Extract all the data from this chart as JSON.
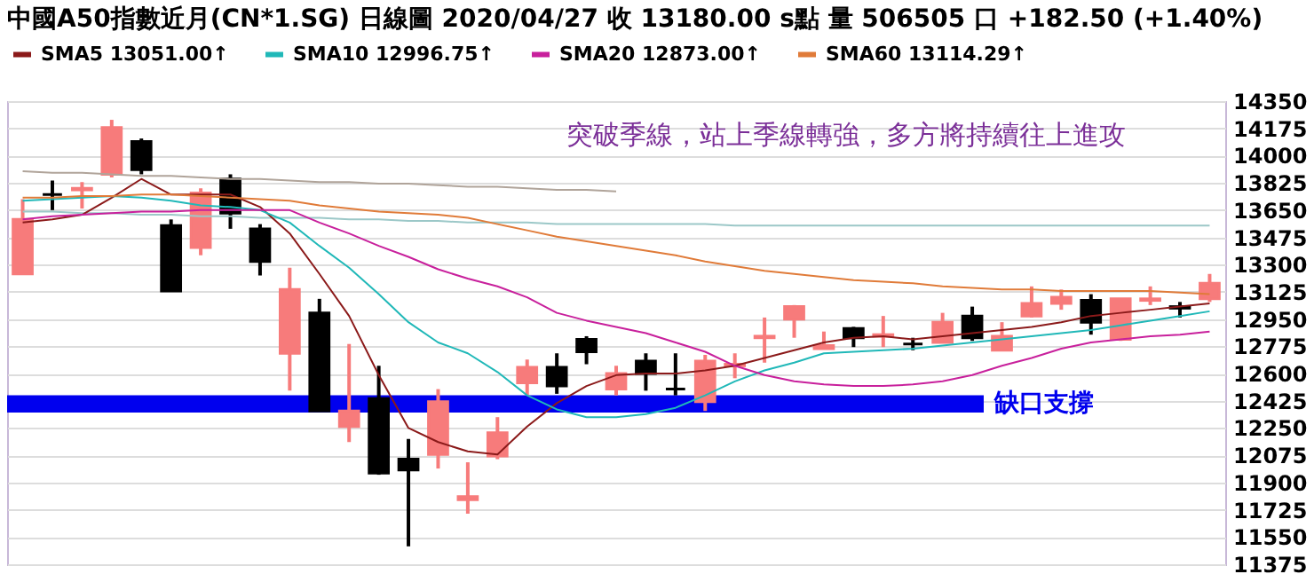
{
  "chart_data": {
    "type": "candlestick",
    "title": "中國A50指數近月(CN*1.SG)   日線圖  2020/04/27  收 13180.00 s點  量 506505 口  +182.50 (+1.40%)",
    "categories": [
      null,
      null,
      null,
      null,
      null,
      null,
      null,
      null,
      null,
      null,
      null,
      null,
      null,
      null,
      null,
      null,
      null,
      null,
      null,
      null,
      null,
      null,
      null,
      null,
      null,
      null,
      null,
      null,
      null,
      null,
      null,
      null,
      null,
      null,
      null,
      null,
      null,
      null,
      null,
      null,
      null
    ],
    "ohlc": [
      [
        13240,
        13720,
        13240,
        13590
      ],
      [
        13750,
        13840,
        13650,
        13750
      ],
      [
        13780,
        13830,
        13660,
        13790
      ],
      [
        13880,
        14230,
        13860,
        14180
      ],
      [
        14090,
        14110,
        13880,
        13910
      ],
      [
        13550,
        13590,
        13130,
        13130
      ],
      [
        13410,
        13790,
        13360,
        13760
      ],
      [
        13850,
        13880,
        13530,
        13630
      ],
      [
        13530,
        13560,
        13230,
        13320
      ],
      [
        12730,
        13280,
        12490,
        13140
      ],
      [
        12990,
        13080,
        12360,
        12360
      ],
      [
        12260,
        12790,
        12160,
        12360
      ],
      [
        12440,
        12650,
        11950,
        11960
      ],
      [
        12050,
        12180,
        11490,
        11980
      ],
      [
        12080,
        12500,
        11990,
        12420
      ],
      [
        11790,
        12030,
        11700,
        11810
      ],
      [
        12070,
        12320,
        12050,
        12220
      ],
      [
        12540,
        12690,
        12460,
        12640
      ],
      [
        12640,
        12730,
        12470,
        12520
      ],
      [
        12820,
        12840,
        12660,
        12740
      ],
      [
        12500,
        12650,
        12460,
        12600
      ],
      [
        12680,
        12730,
        12490,
        12600
      ],
      [
        12500,
        12730,
        12460,
        12500
      ],
      [
        12420,
        12720,
        12360,
        12680
      ],
      [
        12650,
        12730,
        12570,
        12660
      ],
      [
        12830,
        12960,
        12670,
        12840
      ],
      [
        12950,
        13040,
        12830,
        13030
      ],
      [
        12760,
        12870,
        12760,
        12780
      ],
      [
        12890,
        12900,
        12770,
        12830
      ],
      [
        12840,
        12970,
        12770,
        12850
      ],
      [
        12790,
        12830,
        12750,
        12790
      ],
      [
        12800,
        12990,
        12800,
        12930
      ],
      [
        12970,
        13030,
        12810,
        12830
      ],
      [
        12750,
        12930,
        12750,
        12840
      ],
      [
        12970,
        13160,
        12960,
        13050
      ],
      [
        13050,
        13140,
        13010,
        13090
      ],
      [
        13070,
        13110,
        12850,
        12930
      ],
      [
        12820,
        13080,
        12810,
        13080
      ],
      [
        13070,
        13160,
        13040,
        13080
      ],
      [
        13030,
        13060,
        12960,
        13020
      ],
      [
        13080,
        13240,
        13060,
        13180
      ]
    ],
    "colors": [
      "#f77b7b",
      "#000000",
      "#f77b7b",
      "#f77b7b",
      "#000000",
      "#000000",
      "#f77b7b",
      "#000000",
      "#000000",
      "#f77b7b",
      "#000000",
      "#f77b7b",
      "#000000",
      "#000000",
      "#f77b7b",
      "#f77b7b",
      "#f77b7b",
      "#f77b7b",
      "#000000",
      "#000000",
      "#f77b7b",
      "#000000",
      "#000000",
      "#f77b7b",
      "#f77b7b",
      "#f77b7b",
      "#f77b7b",
      "#f77b7b",
      "#000000",
      "#f77b7b",
      "#000000",
      "#f77b7b",
      "#000000",
      "#f77b7b",
      "#f77b7b",
      "#f77b7b",
      "#000000",
      "#f77b7b",
      "#f77b7b",
      "#000000",
      "#f77b7b"
    ],
    "series": [
      {
        "type": "line",
        "name": "SMA5 13051.00↑",
        "color": "#8b1a1a",
        "values": [
          13570,
          13590,
          13620,
          13730,
          13850,
          13750,
          13750,
          13750,
          13670,
          13500,
          13240,
          12970,
          12590,
          12250,
          12160,
          12100,
          12080,
          12260,
          12410,
          12520,
          12590,
          12600,
          12600,
          12620,
          12650,
          12700,
          12750,
          12800,
          12830,
          12840,
          12820,
          12840,
          12860,
          12880,
          12900,
          12930,
          12970,
          12990,
          13010,
          13030,
          13050
        ]
      },
      {
        "type": "line",
        "name": "SMA10 12996.75↑",
        "color": "#20b8b8",
        "values": [
          13710,
          13720,
          13730,
          13740,
          13730,
          13710,
          13680,
          13670,
          13650,
          13570,
          13420,
          13280,
          13110,
          12930,
          12800,
          12730,
          12610,
          12460,
          12370,
          12320,
          12320,
          12340,
          12380,
          12460,
          12550,
          12620,
          12670,
          12730,
          12740,
          12750,
          12760,
          12780,
          12800,
          12820,
          12840,
          12860,
          12880,
          12910,
          12940,
          12970,
          13000
        ]
      },
      {
        "type": "line",
        "name": "SMA20 12873.00↑",
        "color": "#c8209c",
        "values": [
          13590,
          13610,
          13620,
          13630,
          13640,
          13640,
          13650,
          13650,
          13650,
          13650,
          13570,
          13500,
          13420,
          13350,
          13270,
          13210,
          13160,
          13090,
          12990,
          12940,
          12900,
          12860,
          12800,
          12740,
          12650,
          12590,
          12550,
          12530,
          12520,
          12520,
          12530,
          12550,
          12590,
          12650,
          12700,
          12760,
          12800,
          12820,
          12840,
          12850,
          12870
        ]
      },
      {
        "type": "line",
        "name": "SMA60 13114.29↑",
        "color": "#e07b39",
        "values": [
          13730,
          13730,
          13740,
          13740,
          13750,
          13750,
          13740,
          13730,
          13720,
          13710,
          13680,
          13660,
          13640,
          13630,
          13620,
          13600,
          13560,
          13520,
          13480,
          13450,
          13420,
          13390,
          13360,
          13320,
          13290,
          13260,
          13240,
          13220,
          13200,
          13190,
          13180,
          13160,
          13150,
          13140,
          13140,
          13130,
          13130,
          13130,
          13130,
          13120,
          13110
        ]
      },
      {
        "type": "line",
        "color": "#b0a49a",
        "values": [
          13900,
          13890,
          13890,
          13880,
          13870,
          13870,
          13860,
          13850,
          13850,
          13840,
          13830,
          13830,
          13820,
          13820,
          13810,
          13800,
          13800,
          13790,
          13780,
          13780,
          13770,
          null,
          null,
          null,
          null,
          null,
          null,
          null,
          null,
          null,
          null,
          null,
          null,
          null,
          null,
          null,
          null,
          null,
          null,
          null,
          null
        ]
      },
      {
        "type": "line",
        "color": "#9cc8c8",
        "values": [
          13640,
          13640,
          13630,
          13630,
          13620,
          13620,
          13610,
          13610,
          13600,
          13600,
          13600,
          13590,
          13590,
          13580,
          13580,
          13570,
          13570,
          13570,
          13560,
          13560,
          13560,
          13560,
          13560,
          13560,
          13550,
          13550,
          13550,
          13550,
          13550,
          13550,
          13550,
          13550,
          13550,
          13550,
          13550,
          13550,
          13550,
          13550,
          13550,
          13550,
          13550
        ]
      }
    ],
    "bands": [
      {
        "axis": "y",
        "from": 12350,
        "to": 12460,
        "label": "缺口支撐",
        "color": "#0000ee"
      }
    ],
    "annotations": [
      "突破季線，站上季線轉強，多方將持續往上進攻"
    ],
    "ylim": [
      11375,
      14350
    ],
    "yticks": [
      11375,
      11550,
      11725,
      11900,
      12075,
      12250,
      12425,
      12600,
      12775,
      12950,
      13125,
      13300,
      13475,
      13650,
      13825,
      14000,
      14175,
      14350
    ],
    "grid": "y",
    "legend": "top",
    "tick_labels": "y"
  }
}
